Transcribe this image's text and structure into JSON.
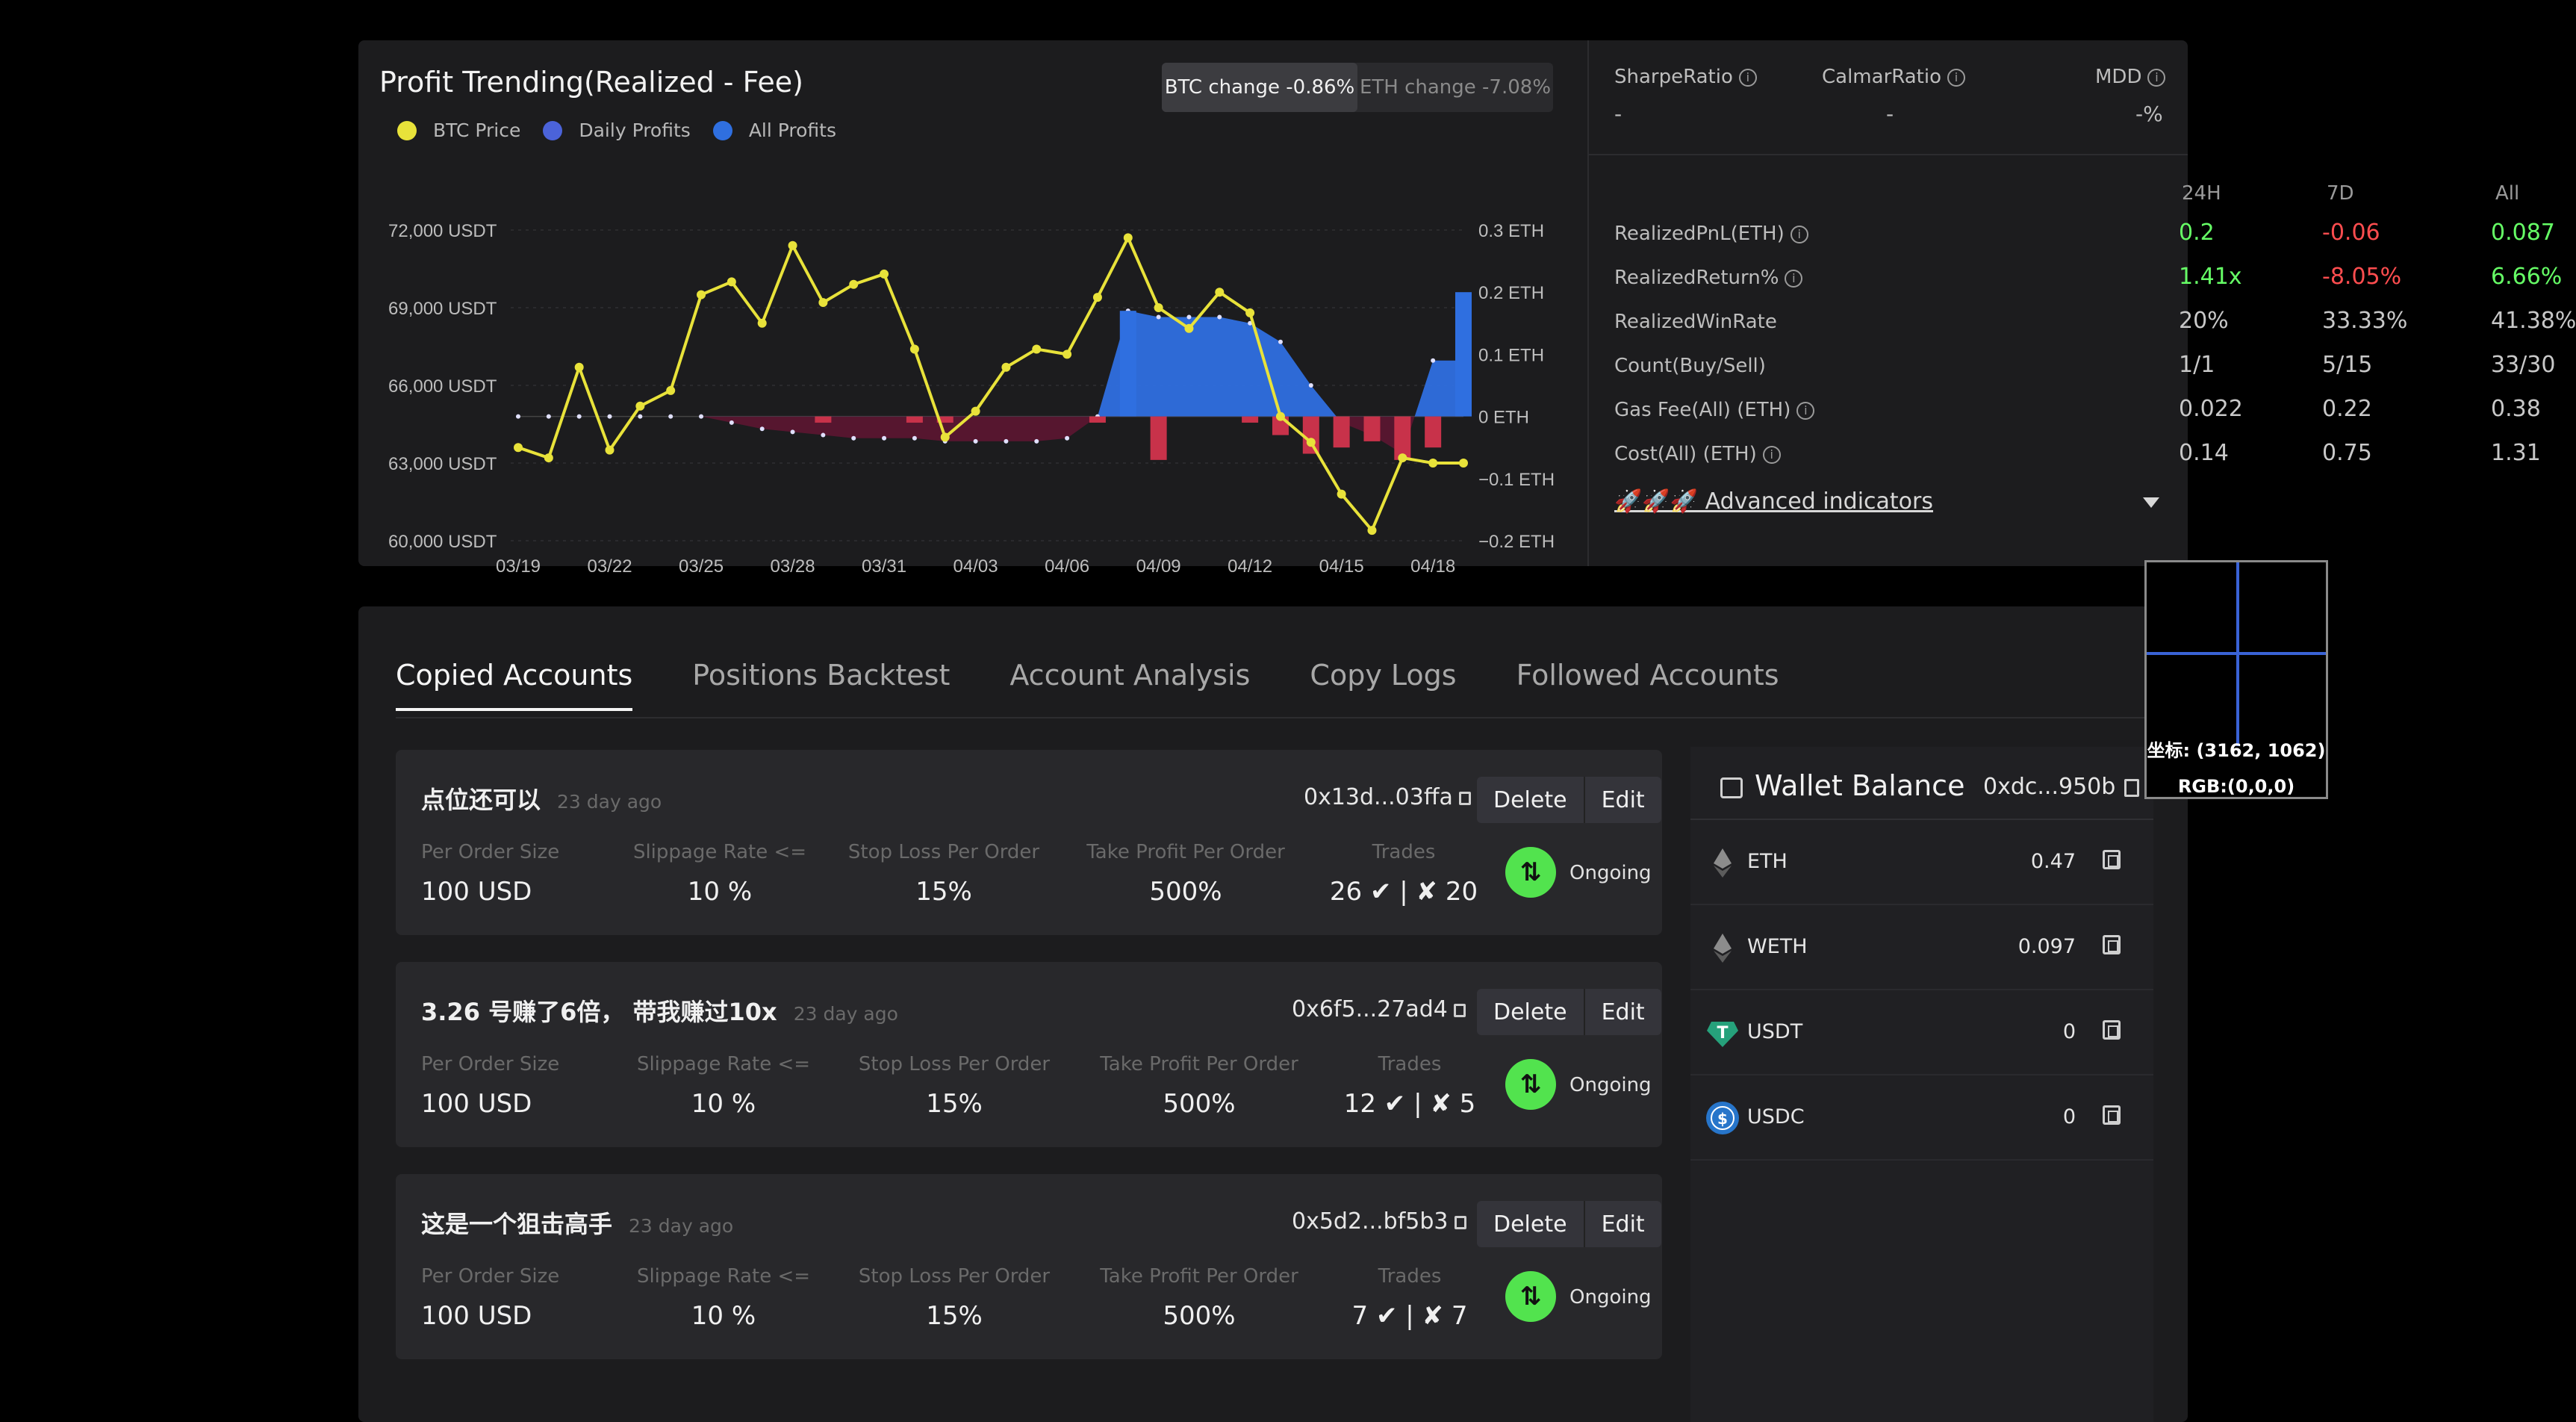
{
  "profit": {
    "title": "Profit Trending(Realized - Fee)",
    "legend": [
      "BTC Price",
      "Daily Profits",
      "All Profits"
    ],
    "toggle": [
      "BTC change -0.86%",
      "ETH change -7.08%"
    ]
  },
  "colors": {
    "btc": "#e8e23a",
    "daily": "#4b63d9",
    "all": "#2f6fe0",
    "negative": "#7a1c34",
    "green": "#66ff66",
    "red": "#ff4d4f"
  },
  "chart_data": {
    "type": "line",
    "x_ticks": [
      "03/19",
      "03/22",
      "03/25",
      "03/28",
      "03/31",
      "04/03",
      "04/06",
      "04/09",
      "04/12",
      "04/15",
      "04/18"
    ],
    "y_left_ticks": [
      "72,000 USDT",
      "69,000 USDT",
      "66,000 USDT",
      "63,000 USDT",
      "60,000 USDT"
    ],
    "y_right_ticks": [
      "0.3 ETH",
      "0.2 ETH",
      "0.1 ETH",
      "0 ETH",
      "−0.1 ETH",
      "−0.2 ETH"
    ],
    "ylim_left": [
      60000,
      72000
    ],
    "ylim_right": [
      -0.2,
      0.3
    ],
    "series": [
      {
        "name": "BTC Price",
        "x": [
          "03/19",
          "03/20",
          "03/21",
          "03/22",
          "03/23",
          "03/24",
          "03/25",
          "03/26",
          "03/27",
          "03/28",
          "03/29",
          "03/30",
          "03/31",
          "04/01",
          "04/02",
          "04/03",
          "04/04",
          "04/05",
          "04/06",
          "04/07",
          "04/08",
          "04/09",
          "04/10",
          "04/11",
          "04/12",
          "04/13",
          "04/14",
          "04/15",
          "04/16",
          "04/17",
          "04/18",
          "04/19"
        ],
        "values": [
          63600,
          63200,
          66700,
          63500,
          65200,
          65800,
          69500,
          70000,
          68400,
          71400,
          69200,
          69900,
          70300,
          67400,
          64000,
          65000,
          66700,
          67400,
          67200,
          69400,
          71700,
          69000,
          68200,
          69600,
          68800,
          64800,
          63800,
          61800,
          60400,
          63200,
          63000,
          63000
        ]
      },
      {
        "name": "All Profits",
        "x": [
          "03/19",
          "03/20",
          "03/21",
          "03/22",
          "03/23",
          "03/24",
          "03/25",
          "03/26",
          "03/27",
          "03/28",
          "03/29",
          "03/30",
          "03/31",
          "04/01",
          "04/02",
          "04/03",
          "04/04",
          "04/05",
          "04/06",
          "04/07",
          "04/08",
          "04/09",
          "04/10",
          "04/11",
          "04/12",
          "04/13",
          "04/14",
          "04/15",
          "04/16",
          "04/17",
          "04/18",
          "04/19"
        ],
        "values": [
          0.0,
          0.0,
          0.0,
          0.0,
          0.0,
          0.0,
          0.0,
          -0.01,
          -0.02,
          -0.025,
          -0.03,
          -0.035,
          -0.035,
          -0.035,
          -0.04,
          -0.04,
          -0.04,
          -0.04,
          -0.035,
          0.0,
          0.17,
          0.16,
          0.16,
          0.16,
          0.15,
          0.12,
          0.05,
          -0.01,
          -0.03,
          -0.06,
          0.09,
          0.09
        ]
      },
      {
        "name": "Daily Profits",
        "x": [
          "03/29",
          "04/01",
          "04/02",
          "04/07",
          "04/08",
          "04/09",
          "04/12",
          "04/13",
          "04/14",
          "04/15",
          "04/16",
          "04/17",
          "04/18",
          "04/19"
        ],
        "values": [
          -0.01,
          -0.01,
          -0.01,
          -0.01,
          0.17,
          -0.07,
          -0.01,
          -0.03,
          -0.06,
          -0.05,
          -0.04,
          -0.07,
          -0.05,
          0.2
        ]
      }
    ]
  },
  "metrics": {
    "sharpe_label": "SharpeRatio",
    "sharpe_val": "-",
    "calmar_label": "CalmarRatio",
    "calmar_val": "-",
    "mdd_label": "MDD",
    "mdd_val": "-%"
  },
  "stats": {
    "headers": [
      "24H",
      "7D",
      "All"
    ],
    "rows": [
      {
        "label": "RealizedPnL(ETH)",
        "info": true,
        "values": [
          "0.2",
          "-0.06",
          "0.087"
        ],
        "tones": [
          "green",
          "red",
          "green"
        ]
      },
      {
        "label": "RealizedReturn%",
        "info": true,
        "values": [
          "1.41x",
          "-8.05%",
          "6.66%"
        ],
        "tones": [
          "green",
          "red",
          "green"
        ]
      },
      {
        "label": "RealizedWinRate",
        "info": false,
        "values": [
          "20%",
          "33.33%",
          "41.38%"
        ],
        "tones": [
          "",
          "",
          ""
        ]
      },
      {
        "label": "Count(Buy/Sell)",
        "info": false,
        "values": [
          "1/1",
          "5/15",
          "33/30"
        ],
        "tones": [
          "",
          "",
          ""
        ]
      },
      {
        "label": "Gas Fee(All) (ETH)",
        "info": true,
        "values": [
          "0.022",
          "0.22",
          "0.38"
        ],
        "tones": [
          "",
          "",
          ""
        ]
      },
      {
        "label": "Cost(All) (ETH)",
        "info": true,
        "values": [
          "0.14",
          "0.75",
          "1.31"
        ],
        "tones": [
          "",
          "",
          ""
        ]
      }
    ],
    "advanced": "🚀🚀🚀 Advanced indicators"
  },
  "tabs": [
    "Copied Accounts",
    "Positions Backtest",
    "Account Analysis",
    "Copy Logs",
    "Followed Accounts"
  ],
  "card_columns": [
    "Per Order Size",
    "Slippage Rate <=",
    "Stop Loss Per Order",
    "Take Profit Per Order",
    "Trades"
  ],
  "cards": [
    {
      "name": "点位还可以",
      "ago": "23 day ago",
      "address": "0x13d...03ffa",
      "size": "100 USD",
      "slippage": "10 %",
      "stop_loss": "15%",
      "take_profit": "500%",
      "trades": "26 ✔ | ✘ 20",
      "delete": "Delete",
      "edit": "Edit",
      "status": "Ongoing"
    },
    {
      "name": "3.26 号赚了6倍， 带我赚过10x",
      "ago": "23 day ago",
      "address": "0x6f5...27ad4",
      "size": "100 USD",
      "slippage": "10 %",
      "stop_loss": "15%",
      "take_profit": "500%",
      "trades": "12 ✔ | ✘ 5",
      "delete": "Delete",
      "edit": "Edit",
      "status": "Ongoing"
    },
    {
      "name": "这是一个狙击高手",
      "ago": "23 day ago",
      "address": "0x5d2...bf5b3",
      "size": "100 USD",
      "slippage": "10 %",
      "stop_loss": "15%",
      "take_profit": "500%",
      "trades": "7 ✔ | ✘ 7",
      "delete": "Delete",
      "edit": "Edit",
      "status": "Ongoing"
    }
  ],
  "wallet": {
    "title": "Wallet Balance",
    "address": "0xdc...950b",
    "tokens": [
      {
        "symbol": "ETH",
        "amount": "0.47",
        "icon": "eth-icon",
        "color": "#3a3a3e"
      },
      {
        "symbol": "WETH",
        "amount": "0.097",
        "icon": "weth-icon",
        "color": "#3a3a3e"
      },
      {
        "symbol": "USDT",
        "amount": "0",
        "icon": "usdt-icon",
        "color": "#26a17b"
      },
      {
        "symbol": "USDC",
        "amount": "0",
        "icon": "usdc-icon",
        "color": "#2775ca"
      }
    ]
  },
  "magnifier": {
    "coord": "坐标: (3162, 1062)",
    "rgb": "RGB:(0,0,0)"
  }
}
